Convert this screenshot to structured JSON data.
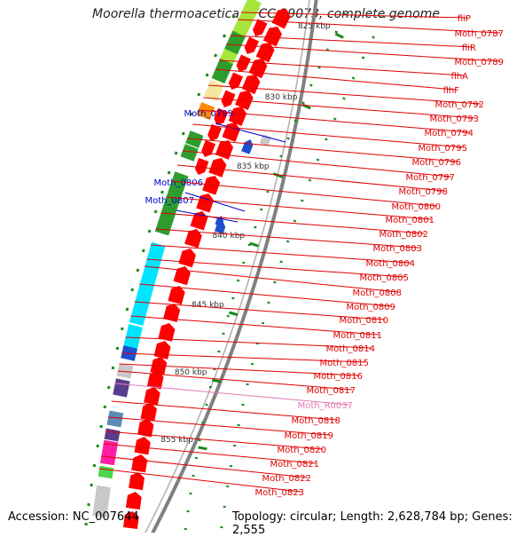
{
  "title": "Moorella thermoacetica ATCC 39073, complete genome",
  "footer": {
    "accession": "Accession: NC_007644",
    "topology": "Topology: circular; Length: 2,628,784 bp; Genes: 2,555"
  },
  "colors": {
    "backbone": "#808080",
    "gene_red": "#ff0000",
    "label_red": "#e00000",
    "label_blue": "#0000cc",
    "label_pink": "#e37ab4",
    "tick_green": "#1a8a1a",
    "cog_green_dark": "#2e9c2e",
    "cog_green_light": "#a6e63c",
    "cog_cyan": "#00e5ff",
    "cog_orange": "#ff8c00",
    "cog_beige": "#f3e7a0",
    "cog_gray": "#c8c8c8",
    "cog_blue": "#1d4fd0",
    "cog_purple": "#5a3d8c",
    "cog_steel": "#5b8bb5",
    "cog_magenta": "#ff1fa6",
    "cog_grass": "#4cd64c"
  },
  "scale_ticks": [
    "825 kbp",
    "830 kbp",
    "835 kbp",
    "840 kbp",
    "845 kbp",
    "850 kbp",
    "855 kbp"
  ],
  "labels_left": [
    "Moth_0799",
    "Moth_0806",
    "Moth_0807"
  ],
  "labels_right": [
    {
      "text": "fliP",
      "color": "red"
    },
    {
      "text": "Moth_0787",
      "color": "red"
    },
    {
      "text": "fliR",
      "color": "red"
    },
    {
      "text": "Moth_0789",
      "color": "red"
    },
    {
      "text": "flhA",
      "color": "red"
    },
    {
      "text": "flhF",
      "color": "red"
    },
    {
      "text": "Moth_0792",
      "color": "red"
    },
    {
      "text": "Moth_0793",
      "color": "red"
    },
    {
      "text": "Moth_0794",
      "color": "red"
    },
    {
      "text": "Moth_0795",
      "color": "red"
    },
    {
      "text": "Moth_0796",
      "color": "red"
    },
    {
      "text": "Moth_0797",
      "color": "red"
    },
    {
      "text": "Moth_0798",
      "color": "red"
    },
    {
      "text": "Moth_0800",
      "color": "red"
    },
    {
      "text": "Moth_0801",
      "color": "red"
    },
    {
      "text": "Moth_0802",
      "color": "red"
    },
    {
      "text": "Moth_0803",
      "color": "red"
    },
    {
      "text": "Moth_0804",
      "color": "red"
    },
    {
      "text": "Moth_0805",
      "color": "red"
    },
    {
      "text": "Moth_0808",
      "color": "red"
    },
    {
      "text": "Moth_0809",
      "color": "red"
    },
    {
      "text": "Moth_0810",
      "color": "red"
    },
    {
      "text": "Moth_0811",
      "color": "red"
    },
    {
      "text": "Moth_0814",
      "color": "red"
    },
    {
      "text": "Moth_0815",
      "color": "red"
    },
    {
      "text": "Moth_0816",
      "color": "red"
    },
    {
      "text": "Moth_0817",
      "color": "red"
    },
    {
      "text": "Moth_R0037",
      "color": "pink"
    },
    {
      "text": "Moth_0818",
      "color": "red"
    },
    {
      "text": "Moth_0819",
      "color": "red"
    },
    {
      "text": "Moth_0820",
      "color": "red"
    },
    {
      "text": "Moth_0821",
      "color": "red"
    },
    {
      "text": "Moth_0822",
      "color": "red"
    },
    {
      "text": "Moth_0823",
      "color": "red"
    }
  ]
}
